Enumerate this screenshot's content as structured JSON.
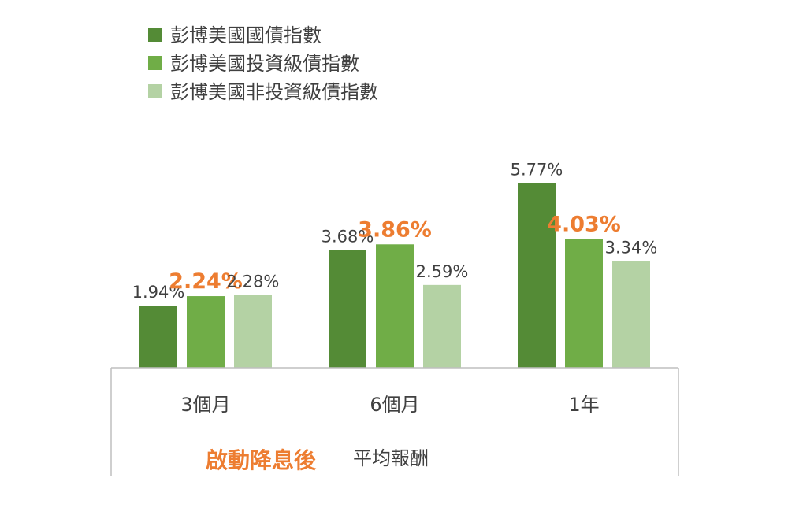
{
  "chart_data": {
    "type": "bar",
    "categories": [
      "3個月",
      "6個月",
      "1年"
    ],
    "series": [
      {
        "name": "彭博美國國債指數",
        "values": [
          1.94,
          3.68,
          5.77
        ],
        "labels": [
          "1.94%",
          "3.68%",
          "5.77%"
        ],
        "color": "#548B36",
        "highlight": false
      },
      {
        "name": "彭博美國投資級債指數",
        "values": [
          2.24,
          3.86,
          4.03
        ],
        "labels": [
          "2.24%",
          "3.86%",
          "4.03%"
        ],
        "color": "#70AD47",
        "highlight": true
      },
      {
        "name": "彭博美國非投資級債指數",
        "values": [
          2.28,
          2.59,
          3.34
        ],
        "labels": [
          "2.28%",
          "2.59%",
          "3.34%"
        ],
        "color": "#B4D2A4",
        "highlight": false
      }
    ],
    "ylim": [
      0,
      6
    ],
    "unit": "%",
    "grid": false,
    "legend_position": "top-left",
    "x_title": {
      "main": "啟動降息後",
      "sub": "平均報酬"
    },
    "highlight_color": "#ED7D31",
    "axis_color": "#BFBFBF"
  }
}
